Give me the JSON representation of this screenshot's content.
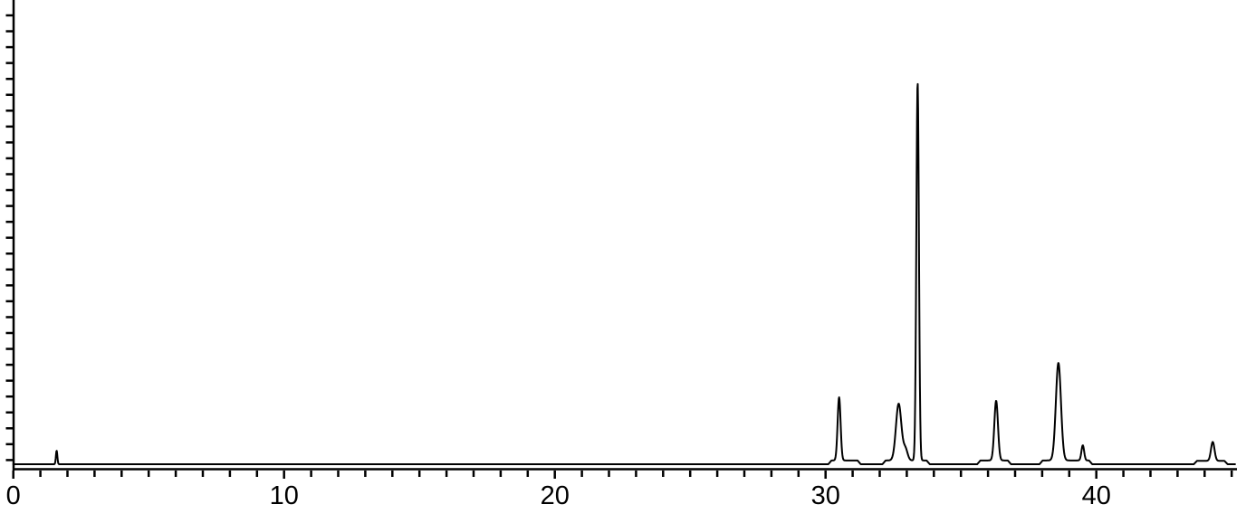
{
  "chart_data": {
    "type": "line",
    "subtype": "chromatogram-trace",
    "title": "",
    "xlabel": "",
    "ylabel": "",
    "xlim": [
      0,
      45.2
    ],
    "ylim_relative": [
      0,
      1.05
    ],
    "grid": false,
    "legend": null,
    "line_color": "#000000",
    "background_color": "#ffffff",
    "x_axis": {
      "major_ticks": [
        0,
        10,
        20,
        30,
        40
      ],
      "major_tick_labels": [
        "0",
        "10",
        "20",
        "30",
        "40"
      ],
      "minor_tick_interval": 1,
      "minor_tick_start": 0,
      "minor_tick_end": 45
    },
    "y_axis": {
      "labels_visible": false,
      "minor_tick_count": 29
    },
    "baseline_level_relative": 0,
    "peaks": [
      {
        "rt": 1.6,
        "height": 0.036,
        "sigma": 0.027
      },
      {
        "rt": 30.5,
        "height": 0.167,
        "sigma": 0.055
      },
      {
        "rt": 32.7,
        "height": 0.15,
        "sigma": 0.1
      },
      {
        "rt": 32.95,
        "height": 0.03,
        "sigma": 0.08
      },
      {
        "rt": 33.4,
        "height": 1.0,
        "sigma": 0.047
      },
      {
        "rt": 36.3,
        "height": 0.158,
        "sigma": 0.067
      },
      {
        "rt": 38.6,
        "height": 0.258,
        "sigma": 0.094
      },
      {
        "rt": 39.5,
        "height": 0.04,
        "sigma": 0.05
      },
      {
        "rt": 44.3,
        "height": 0.05,
        "sigma": 0.065
      }
    ],
    "baseline_lifts": [
      {
        "from": 30.1,
        "to": 31.3,
        "lift": 0.01
      },
      {
        "from": 32.1,
        "to": 33.85,
        "lift": 0.01
      },
      {
        "from": 35.6,
        "to": 36.85,
        "lift": 0.01
      },
      {
        "from": 37.9,
        "to": 39.85,
        "lift": 0.01
      },
      {
        "from": 43.6,
        "to": 44.85,
        "lift": 0.009
      }
    ]
  }
}
